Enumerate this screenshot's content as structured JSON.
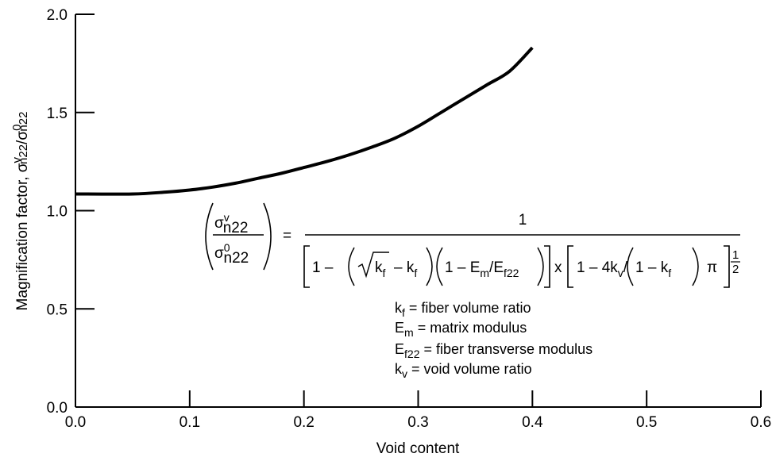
{
  "chart_data": {
    "type": "line",
    "x_label": "Void content",
    "y_label": "Magnification factor, σᵛn22/σ⁰n22",
    "y_label_parts": {
      "base": "Magnification factor, σ",
      "sup1": "v",
      "sub1": "n22",
      "slash": "/σ",
      "sup2": "0",
      "sub2": "n22"
    },
    "xlim": [
      0.0,
      0.6
    ],
    "ylim": [
      0.0,
      2.0
    ],
    "x_ticks": [
      "0.0",
      "0.1",
      "0.2",
      "0.3",
      "0.4",
      "0.5",
      "0.6"
    ],
    "x_tick_values": [
      0.0,
      0.1,
      0.2,
      0.3,
      0.4,
      0.5,
      0.6
    ],
    "y_ticks": [
      "0.0",
      "0.5",
      "1.0",
      "1.5",
      "2.0"
    ],
    "y_tick_values": [
      0.0,
      0.5,
      1.0,
      1.5,
      2.0
    ],
    "grid": false,
    "series": [
      {
        "x": [
          0.0,
          0.05,
          0.08,
          0.1,
          0.12,
          0.14,
          0.16,
          0.18,
          0.2,
          0.22,
          0.24,
          0.26,
          0.28,
          0.3,
          0.32,
          0.34,
          0.36,
          0.38,
          0.4
        ],
        "y": [
          1.085,
          1.085,
          1.095,
          1.105,
          1.12,
          1.14,
          1.165,
          1.19,
          1.22,
          1.25,
          1.285,
          1.325,
          1.37,
          1.43,
          1.5,
          1.57,
          1.64,
          1.71,
          1.83
        ],
        "color": "#000000"
      }
    ],
    "annotations": {
      "formula": {
        "lhs_num": "σ",
        "lhs_num_sup": "v",
        "lhs_num_sub": "n22",
        "lhs_den": "σ",
        "lhs_den_sup": "0",
        "lhs_den_sub": "n22",
        "equals": "=",
        "rhs_num": "1",
        "t_one_minus": "1 –",
        "t_kf": "k",
        "t_kf_sub": "f",
        "t_minus_kf": "– k",
        "t_minus_kf_sub": "f",
        "t_em": "1 – E",
        "t_em_sub": "m",
        "t_ef": "/E",
        "t_ef_sub": "f22",
        "t_x": "x",
        "t_kv": "1 – 4k",
        "t_kv_sub": "v",
        "t_slash": "/",
        "t_kf2": "1 – k",
        "t_kf2_sub": "f",
        "t_pi": "π",
        "t_exp_num": "1",
        "t_exp_den": "2"
      },
      "definitions": [
        {
          "sym": "k",
          "sub": "f",
          "text": " = fiber volume ratio"
        },
        {
          "sym": "E",
          "sub": "m",
          "text": " = matrix modulus"
        },
        {
          "sym": "E",
          "sub": "f22",
          "text": " = fiber transverse modulus"
        },
        {
          "sym": "k",
          "sub": "v",
          "text": " = void volume ratio"
        }
      ]
    }
  }
}
